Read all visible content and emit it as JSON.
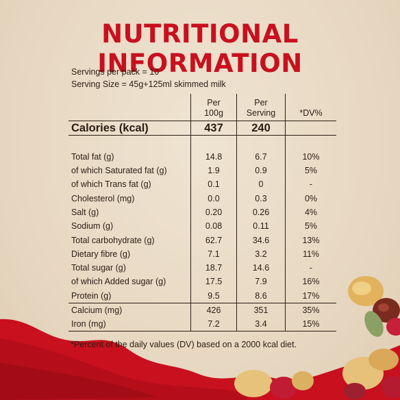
{
  "title": "NUTRITIONAL INFORMATION",
  "servings_per_pack": "Servings per pack = 10",
  "serving_size": "Serving Size = 45g+125ml skimmed milk",
  "headers": {
    "per_100g_line1": "Per",
    "per_100g_line2": "100g",
    "per_serving_line1": "Per",
    "per_serving_line2": "Serving",
    "dv": "*DV%"
  },
  "calories": {
    "label": "Calories (kcal)",
    "per_100g": "437",
    "per_serving": "240",
    "dv": ""
  },
  "rows": [
    {
      "label": "Total fat (g)",
      "per_100g": "14.8",
      "per_serving": "6.7",
      "dv": "10%"
    },
    {
      "label": "of which Saturated fat (g)",
      "per_100g": "1.9",
      "per_serving": "0.9",
      "dv": "5%"
    },
    {
      "label": "of which Trans fat (g)",
      "per_100g": "0.1",
      "per_serving": "0",
      "dv": "-"
    },
    {
      "label": "Cholesterol (mg)",
      "per_100g": "0.0",
      "per_serving": "0.3",
      "dv": "0%"
    },
    {
      "label": "Salt (g)",
      "per_100g": "0.20",
      "per_serving": "0.26",
      "dv": "4%"
    },
    {
      "label": "Sodium (g)",
      "per_100g": "0.08",
      "per_serving": "0.11",
      "dv": "5%"
    },
    {
      "label": "Total carbohydrate (g)",
      "per_100g": "62.7",
      "per_serving": "34.6",
      "dv": "13%"
    },
    {
      "label": "Dietary fibre (g)",
      "per_100g": "7.1",
      "per_serving": "3.2",
      "dv": "11%"
    },
    {
      "label": "Total sugar (g)",
      "per_100g": "18.7",
      "per_serving": "14.6",
      "dv": "-"
    },
    {
      "label": "of which Added sugar (g)",
      "per_100g": "17.5",
      "per_serving": "7.9",
      "dv": "16%"
    },
    {
      "label": "Protein (g)",
      "per_100g": "9.5",
      "per_serving": "8.6",
      "dv": "17%"
    }
  ],
  "minerals": [
    {
      "label": "Calcium (mg)",
      "per_100g": "426",
      "per_serving": "351",
      "dv": "35%"
    },
    {
      "label": "Iron (mg)",
      "per_100g": "7.2",
      "per_serving": "3.4",
      "dv": "15%"
    }
  ],
  "footnote": "*Percent of the daily values (DV) based on a 2000 kcal diet.",
  "colors": {
    "title_red": "#c8101e",
    "background": "#e9dcc7",
    "text": "#2a1d14"
  }
}
